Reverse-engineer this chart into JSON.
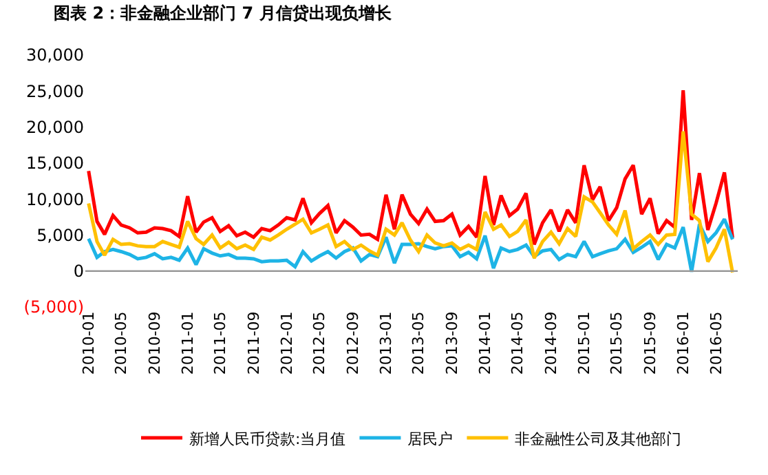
{
  "chart_data": {
    "type": "line",
    "title": "图表 2：非金融企业部门 7 月信贷出现负增长",
    "x": [
      "2010-01",
      "2010-02",
      "2010-03",
      "2010-04",
      "2010-05",
      "2010-06",
      "2010-07",
      "2010-08",
      "2010-09",
      "2010-10",
      "2010-11",
      "2010-12",
      "2011-01",
      "2011-02",
      "2011-03",
      "2011-04",
      "2011-05",
      "2011-06",
      "2011-07",
      "2011-08",
      "2011-09",
      "2011-10",
      "2011-11",
      "2011-12",
      "2012-01",
      "2012-02",
      "2012-03",
      "2012-04",
      "2012-05",
      "2012-06",
      "2012-07",
      "2012-08",
      "2012-09",
      "2012-10",
      "2012-11",
      "2012-12",
      "2013-01",
      "2013-02",
      "2013-03",
      "2013-04",
      "2013-05",
      "2013-06",
      "2013-07",
      "2013-08",
      "2013-09",
      "2013-10",
      "2013-11",
      "2013-12",
      "2014-01",
      "2014-02",
      "2014-03",
      "2014-04",
      "2014-05",
      "2014-06",
      "2014-07",
      "2014-08",
      "2014-09",
      "2014-10",
      "2014-11",
      "2014-12",
      "2015-01",
      "2015-02",
      "2015-03",
      "2015-04",
      "2015-05",
      "2015-06",
      "2015-07",
      "2015-08",
      "2015-09",
      "2015-10",
      "2015-11",
      "2015-12",
      "2016-01",
      "2016-02",
      "2016-03",
      "2016-04",
      "2016-05",
      "2016-06",
      "2016-07"
    ],
    "series": [
      {
        "name": "新增人民币贷款:当月值",
        "color": "#ff0000",
        "values": [
          13900,
          6900,
          5100,
          7700,
          6400,
          6000,
          5300,
          5400,
          6000,
          5900,
          5600,
          4800,
          10400,
          5400,
          6800,
          7400,
          5500,
          6300,
          4900,
          5400,
          4700,
          5900,
          5600,
          6400,
          7400,
          7100,
          10100,
          6700,
          8000,
          9100,
          5300,
          7000,
          6100,
          5000,
          5100,
          4400,
          10600,
          5800,
          10600,
          7900,
          6600,
          8600,
          6900,
          7000,
          7900,
          5000,
          6200,
          4700,
          13200,
          6400,
          10500,
          7700,
          8600,
          10800,
          3700,
          6700,
          8500,
          5500,
          8500,
          6700,
          14700,
          9900,
          11700,
          7000,
          8800,
          12800,
          14700,
          7900,
          10100,
          5200,
          7000,
          6100,
          25100,
          7100,
          13600,
          5700,
          9400,
          13700,
          4600
        ]
      },
      {
        "name": "居民户",
        "color": "#1eb4e6",
        "values": [
          4500,
          1900,
          2700,
          3000,
          2700,
          2300,
          1700,
          1900,
          2400,
          1700,
          1900,
          1500,
          3200,
          900,
          3100,
          2500,
          2100,
          2300,
          1800,
          1800,
          1700,
          1300,
          1400,
          1400,
          1500,
          600,
          2700,
          1400,
          2100,
          2700,
          1800,
          2700,
          3200,
          1400,
          2300,
          2000,
          4700,
          1100,
          3700,
          3700,
          3800,
          3400,
          3100,
          3400,
          3500,
          2000,
          2600,
          1700,
          4900,
          400,
          3200,
          2700,
          3000,
          3600,
          2000,
          2800,
          3000,
          1600,
          2300,
          2000,
          4100,
          2000,
          2400,
          2800,
          3100,
          4400,
          2600,
          3300,
          4100,
          1600,
          3700,
          3200,
          6100,
          -100,
          6500,
          4100,
          5300,
          7200,
          4400
        ]
      },
      {
        "name": "非金融性公司及其他部门",
        "color": "#ffc000",
        "values": [
          9400,
          4100,
          2200,
          4400,
          3700,
          3800,
          3500,
          3400,
          3400,
          4100,
          3700,
          3300,
          6900,
          4500,
          3700,
          5000,
          3200,
          4000,
          3100,
          3600,
          3000,
          4700,
          4300,
          5000,
          5800,
          6500,
          7200,
          5300,
          5800,
          6400,
          3400,
          4100,
          3000,
          3600,
          2800,
          2200,
          5800,
          5000,
          6700,
          4300,
          2700,
          5000,
          3900,
          3500,
          3900,
          3000,
          3600,
          3000,
          8200,
          5800,
          6400,
          4800,
          5500,
          7100,
          1800,
          4100,
          5400,
          3800,
          5900,
          4800,
          10300,
          9600,
          8100,
          6400,
          5100,
          8400,
          3100,
          4100,
          5000,
          3700,
          5000,
          5100,
          19400,
          7900,
          7000,
          1300,
          3200,
          5800,
          -200
        ]
      }
    ],
    "xlim": [
      "2009-12-20",
      "2016-07-20"
    ],
    "xticks": [
      "2010-01",
      "2010-05",
      "2010-09",
      "2011-01",
      "2011-05",
      "2011-09",
      "2012-01",
      "2012-05",
      "2012-09",
      "2013-01",
      "2013-05",
      "2013-09",
      "2014-01",
      "2014-05",
      "2014-09",
      "2015-01",
      "2015-05",
      "2015-09",
      "2016-01",
      "2016-05"
    ],
    "ylim": [
      -5000,
      30000
    ],
    "yticks": [
      {
        "value": 30000,
        "label": "30,000"
      },
      {
        "value": 25000,
        "label": "25,000"
      },
      {
        "value": 20000,
        "label": "20,000"
      },
      {
        "value": 15000,
        "label": "15,000"
      },
      {
        "value": 10000,
        "label": "10,000"
      },
      {
        "value": 5000,
        "label": "5,000"
      },
      0,
      {
        "value": -5000,
        "label": "(5,000)"
      }
    ],
    "ref_lines": [
      {
        "axis": "y",
        "value": 0,
        "color": "#999999"
      }
    ],
    "legend": "bottom",
    "marker": "none",
    "line_style": "solid"
  }
}
